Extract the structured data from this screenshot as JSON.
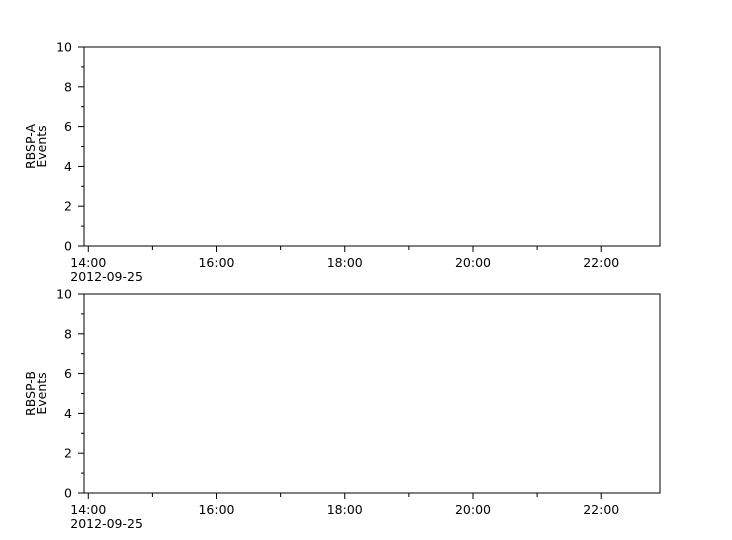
{
  "chart_data": [
    {
      "type": "line",
      "ylabel_lines": [
        "RBSP-A",
        "Events"
      ],
      "xlim": [
        "2012-09-25T13:56",
        "2012-09-25T22:55"
      ],
      "ylim": [
        0,
        10
      ],
      "yticks": [
        "0",
        "2",
        "4",
        "6",
        "8",
        "10"
      ],
      "xticks": [
        "14:00",
        "16:00",
        "18:00",
        "20:00",
        "22:00"
      ],
      "xdate_label": "2012-09-25",
      "series": [],
      "grid": false
    },
    {
      "type": "line",
      "ylabel_lines": [
        "RBSP-B",
        "Events"
      ],
      "xlim": [
        "2012-09-25T13:56",
        "2012-09-25T22:55"
      ],
      "ylim": [
        0,
        10
      ],
      "yticks": [
        "0",
        "2",
        "4",
        "6",
        "8",
        "10"
      ],
      "xticks": [
        "14:00",
        "16:00",
        "18:00",
        "20:00",
        "22:00"
      ],
      "xdate_label": "2012-09-25",
      "series": [],
      "grid": false
    }
  ]
}
